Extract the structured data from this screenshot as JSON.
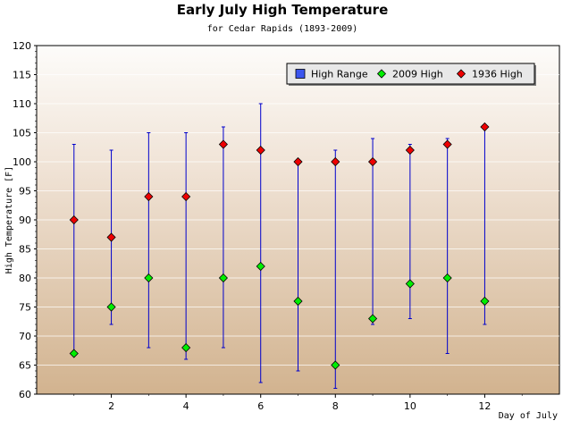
{
  "chart_data": {
    "type": "scatter",
    "title": "Early July High Temperature",
    "subtitle": "for Cedar Rapids (1893-2009)",
    "xlabel": "Day of July",
    "ylabel": "High Temperature [F]",
    "xlim": [
      0,
      14
    ],
    "ylim": [
      60,
      120
    ],
    "x_ticks": [
      2,
      4,
      6,
      8,
      10,
      12
    ],
    "y_ticks": [
      60,
      65,
      70,
      75,
      80,
      85,
      90,
      95,
      100,
      105,
      110,
      115,
      120
    ],
    "grid": true,
    "legend_position": "top-right",
    "x": [
      1,
      2,
      3,
      4,
      5,
      6,
      7,
      8,
      9,
      10,
      11,
      12
    ],
    "series": [
      {
        "name": "High Range",
        "type": "errorbar",
        "color": "#0000cc",
        "low": [
          67,
          72,
          68,
          66,
          68,
          62,
          64,
          61,
          72,
          73,
          67,
          72
        ],
        "high": [
          103,
          102,
          105,
          105,
          106,
          110,
          100,
          102,
          104,
          103,
          104,
          106
        ]
      },
      {
        "name": "2009 High",
        "type": "marker",
        "color": "#00ee00",
        "values": [
          67,
          75,
          80,
          68,
          80,
          82,
          76,
          65,
          73,
          79,
          80,
          76
        ]
      },
      {
        "name": "1936 High",
        "type": "marker",
        "color": "#ee0000",
        "values": [
          90,
          87,
          94,
          94,
          103,
          102,
          100,
          100,
          100,
          102,
          103,
          106
        ]
      }
    ]
  }
}
